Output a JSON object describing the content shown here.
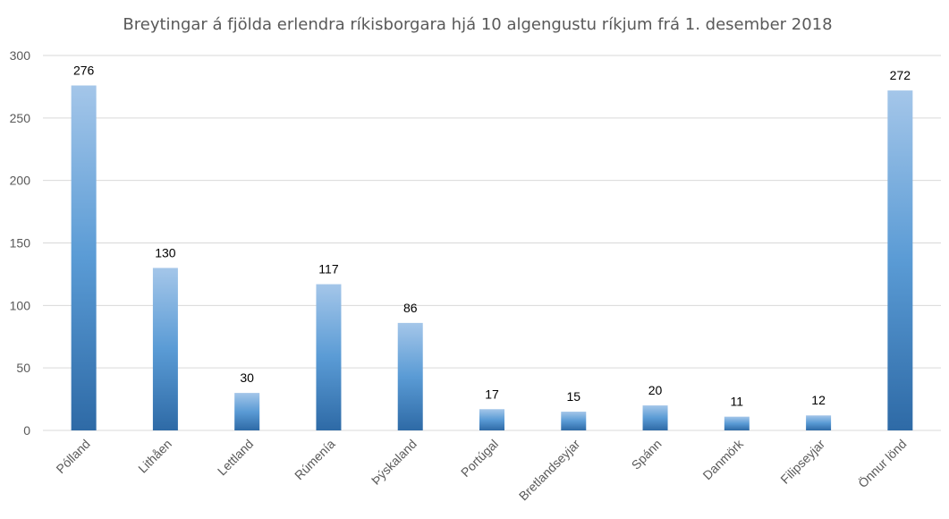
{
  "chart_data": {
    "type": "bar",
    "title": "Breytingar á fjölda erlendra ríkisborgara hjá 10 algengustu ríkjum frá 1. desember 2018",
    "categories": [
      "Pólland",
      "Lithåen",
      "Lettland",
      "Rúmenía",
      "Þýskaland",
      "Portúgal",
      "Bretlandseyjar",
      "Spánn",
      "Danmörk",
      "Filipseyjar",
      "Önnur lönd"
    ],
    "values": [
      276,
      130,
      30,
      117,
      86,
      17,
      15,
      20,
      11,
      12,
      272
    ],
    "ylim": [
      0,
      300
    ],
    "yticks": [
      0,
      50,
      100,
      150,
      200,
      250,
      300
    ],
    "grid": true,
    "legend": "none",
    "colors": {
      "bar_top": "#a4c6e9",
      "bar_mid": "#5a9bd5",
      "bar_bottom": "#2e6aa6"
    }
  }
}
